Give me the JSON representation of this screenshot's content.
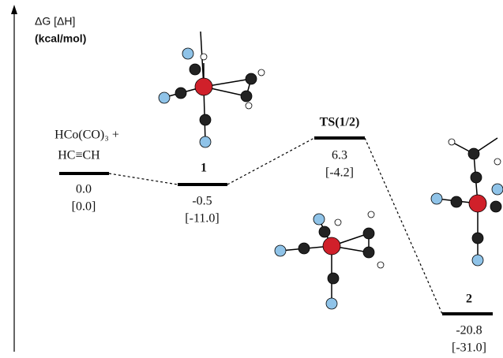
{
  "axis": {
    "label": "ΔG [ΔH]",
    "unit": "(kcal/mol)"
  },
  "levels": [
    {
      "label": [
        "HCo(CO)₃ +",
        "HC≡CH"
      ],
      "dg": "0.0",
      "dh": "[0.0]"
    },
    {
      "label": [
        "1"
      ],
      "dg": "-0.5",
      "dh": "[-11.0]"
    },
    {
      "label": [
        "TS(1/2)"
      ],
      "dg": "6.3",
      "dh": "[-4.2]"
    },
    {
      "label": [
        "2"
      ],
      "dg": "-20.8",
      "dh": "[-31.0]"
    }
  ]
}
